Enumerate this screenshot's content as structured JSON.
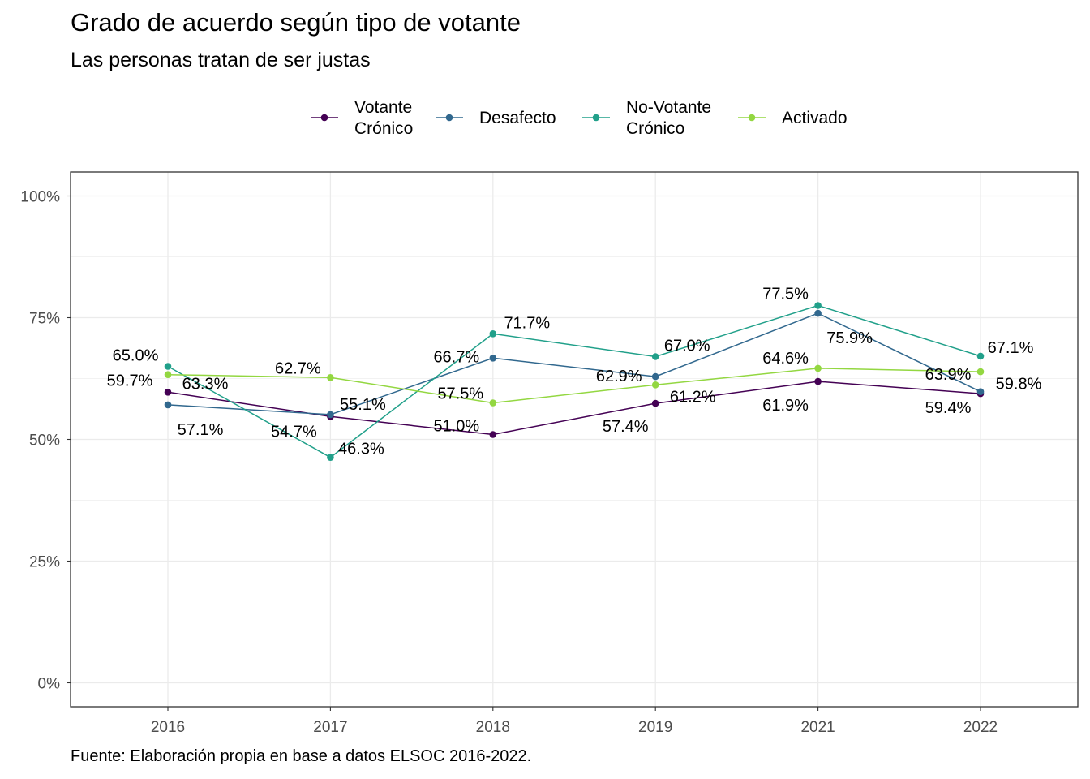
{
  "title": "Grado de acuerdo según tipo de votante",
  "subtitle": "Las personas tratan de ser justas",
  "caption": "Fuente: Elaboración propia en base a datos ELSOC 2016-2022.",
  "chart_data": {
    "type": "line",
    "categories": [
      "2016",
      "2017",
      "2018",
      "2019",
      "2021",
      "2022"
    ],
    "ylim": [
      0,
      100
    ],
    "y_ticks": [
      0,
      25,
      50,
      75,
      100
    ],
    "y_tick_labels": [
      "0%",
      "25%",
      "50%",
      "75%",
      "100%"
    ],
    "grid": true,
    "legend_position": "top",
    "series": [
      {
        "name": "Votante Crónico",
        "name_lines": [
          "Votante",
          "Crónico"
        ],
        "color": "#440154",
        "values": [
          59.7,
          54.7,
          51.0,
          57.4,
          61.9,
          59.4
        ],
        "labels": [
          "59.7%",
          "54.7%",
          "51.0%",
          "57.4%",
          "61.9%",
          "59.4%"
        ]
      },
      {
        "name": "Desafecto",
        "name_lines": [
          "Desafecto"
        ],
        "color": "#31688E",
        "values": [
          57.1,
          55.1,
          66.7,
          62.9,
          75.9,
          59.8
        ],
        "labels": [
          "57.1%",
          "55.1%",
          "66.7%",
          "62.9%",
          "75.9%",
          "59.8%"
        ]
      },
      {
        "name": "No-Votante Crónico",
        "name_lines": [
          "No-Votante",
          "Crónico"
        ],
        "color": "#21A08A",
        "values": [
          65.0,
          46.3,
          71.7,
          67.0,
          77.5,
          67.1
        ],
        "labels": [
          "65.0%",
          "46.3%",
          "71.7%",
          "67.0%",
          "77.5%",
          "67.1%"
        ]
      },
      {
        "name": "Activado",
        "name_lines": [
          "Activado"
        ],
        "color": "#93D741",
        "values": [
          63.3,
          62.7,
          57.5,
          61.2,
          64.6,
          63.9
        ],
        "labels": [
          "63.3%",
          "62.7%",
          "57.5%",
          "61.2%",
          "64.6%",
          "63.9%"
        ]
      }
    ]
  }
}
